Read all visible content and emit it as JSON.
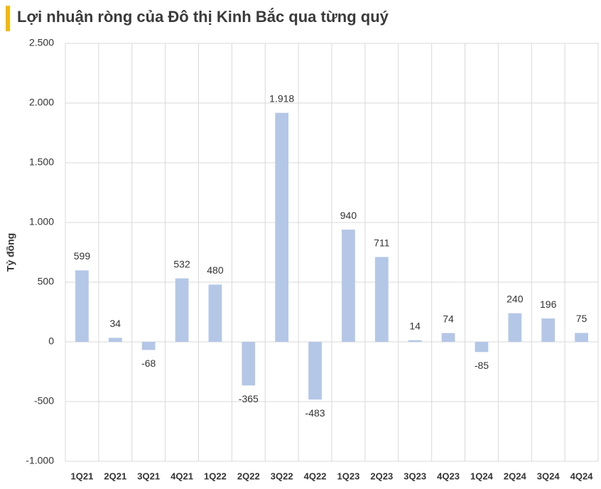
{
  "chart_data": {
    "type": "bar",
    "title": "Lợi nhuận ròng của Đô thị Kinh Bắc qua từng quý",
    "y_label": "Tỷ đồng",
    "categories": [
      "1Q21",
      "2Q21",
      "3Q21",
      "4Q21",
      "1Q22",
      "2Q22",
      "3Q22",
      "4Q22",
      "1Q23",
      "2Q23",
      "3Q23",
      "4Q23",
      "1Q24",
      "2Q24",
      "3Q24",
      "4Q24"
    ],
    "values": [
      599,
      34,
      -68,
      532,
      480,
      -365,
      1918,
      -483,
      940,
      711,
      14,
      74,
      -85,
      240,
      196,
      75
    ],
    "value_labels": [
      "599",
      "34",
      "-68",
      "532",
      "480",
      "-365",
      "1.918",
      "-483",
      "940",
      "711",
      "14",
      "74",
      "-85",
      "240",
      "196",
      "75"
    ],
    "color": "#b4c7e7",
    "ylim": [
      -1000,
      2500
    ],
    "yticks": [
      {
        "value": -1000,
        "label": "-1.000"
      },
      -500,
      0,
      500,
      {
        "value": 1000,
        "label": "1.000"
      },
      {
        "value": 1500,
        "label": "1.500"
      },
      {
        "value": 2000,
        "label": "2.000"
      },
      {
        "value": 2500,
        "label": "2.500"
      }
    ],
    "grid": true
  }
}
